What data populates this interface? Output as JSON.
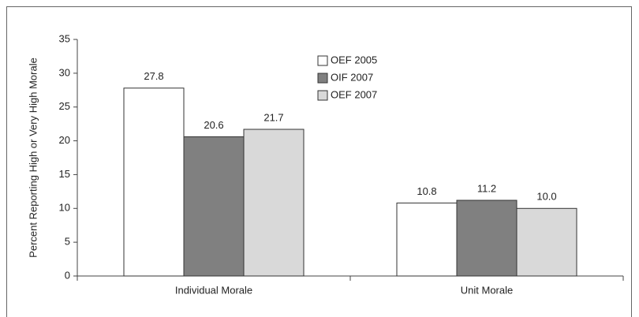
{
  "chart_data": {
    "type": "bar",
    "y_label": "Percent Reporting High or Very High Morale",
    "categories": [
      "Individual Morale",
      "Unit Morale"
    ],
    "series": [
      {
        "name": "OEF 2005",
        "color": "#ffffff",
        "values": [
          27.8,
          10.8
        ],
        "value_labels": [
          "27.8",
          "10.8"
        ]
      },
      {
        "name": "OIF 2007",
        "color": "#808080",
        "values": [
          20.6,
          11.2
        ],
        "value_labels": [
          "20.6",
          "11.2"
        ]
      },
      {
        "name": "OEF 2007",
        "color": "#d9d9d9",
        "values": [
          21.7,
          10.0
        ],
        "value_labels": [
          "21.7",
          "10.0"
        ]
      }
    ],
    "ylim": [
      0,
      35
    ],
    "yticks": [
      0,
      5,
      10,
      15,
      20,
      25,
      30,
      35
    ],
    "legend": "top"
  }
}
